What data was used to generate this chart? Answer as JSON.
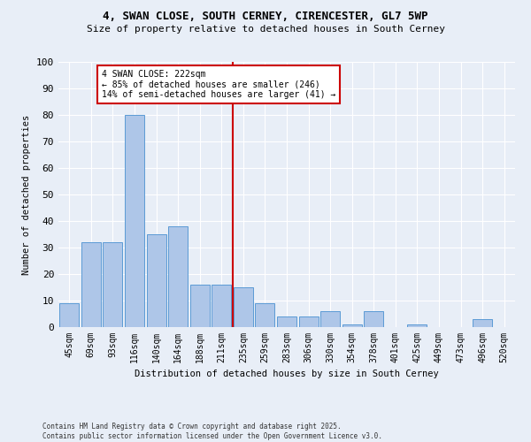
{
  "title_line1": "4, SWAN CLOSE, SOUTH CERNEY, CIRENCESTER, GL7 5WP",
  "title_line2": "Size of property relative to detached houses in South Cerney",
  "xlabel": "Distribution of detached houses by size in South Cerney",
  "ylabel": "Number of detached properties",
  "bar_labels": [
    "45sqm",
    "69sqm",
    "93sqm",
    "116sqm",
    "140sqm",
    "164sqm",
    "188sqm",
    "211sqm",
    "235sqm",
    "259sqm",
    "283sqm",
    "306sqm",
    "330sqm",
    "354sqm",
    "378sqm",
    "401sqm",
    "425sqm",
    "449sqm",
    "473sqm",
    "496sqm",
    "520sqm"
  ],
  "bar_values": [
    9,
    32,
    32,
    80,
    35,
    38,
    16,
    16,
    15,
    9,
    4,
    4,
    6,
    1,
    6,
    0,
    1,
    0,
    0,
    3,
    0
  ],
  "bar_color": "#aec6e8",
  "bar_edge_color": "#5b9bd5",
  "vline_pos": 7.5,
  "annotation_line1": "4 SWAN CLOSE: 222sqm",
  "annotation_line2": "← 85% of detached houses are smaller (246)",
  "annotation_line3": "14% of semi-detached houses are larger (41) →",
  "annotation_box_color": "#ffffff",
  "annotation_box_edge": "#cc0000",
  "vline_color": "#cc0000",
  "ylim": [
    0,
    100
  ],
  "yticks": [
    0,
    10,
    20,
    30,
    40,
    50,
    60,
    70,
    80,
    90,
    100
  ],
  "background_color": "#e8eef7",
  "footer_line1": "Contains HM Land Registry data © Crown copyright and database right 2025.",
  "footer_line2": "Contains public sector information licensed under the Open Government Licence v3.0."
}
